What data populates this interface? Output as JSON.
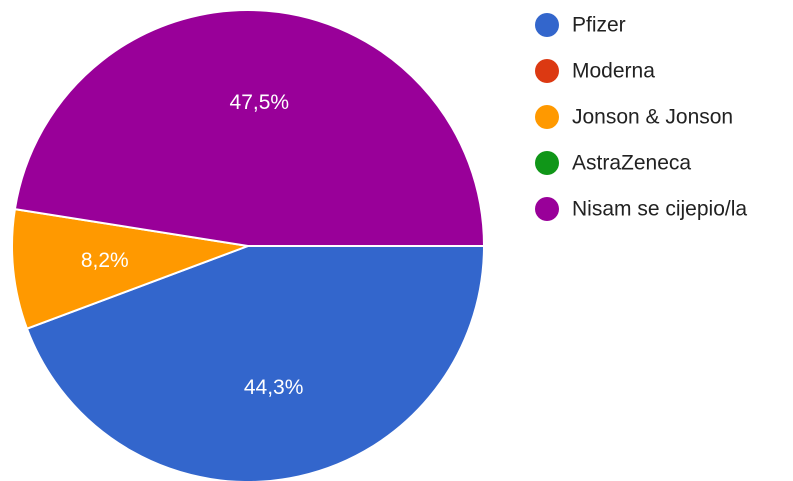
{
  "chart_data": {
    "type": "pie",
    "title": "",
    "legend_position": "right",
    "series": [
      {
        "name": "Pfizer",
        "value": 44.3,
        "label": "44,3%",
        "color": "#3366cc"
      },
      {
        "name": "Moderna",
        "value": 0,
        "label": "",
        "color": "#dc3912"
      },
      {
        "name": "Jonson & Jonson",
        "value": 8.2,
        "label": "8,2%",
        "color": "#ff9900"
      },
      {
        "name": "AstraZeneca",
        "value": 0,
        "label": "",
        "color": "#109618"
      },
      {
        "name": "Nisam se cijepio/la",
        "value": 47.5,
        "label": "47,5%",
        "color": "#990099"
      }
    ]
  }
}
